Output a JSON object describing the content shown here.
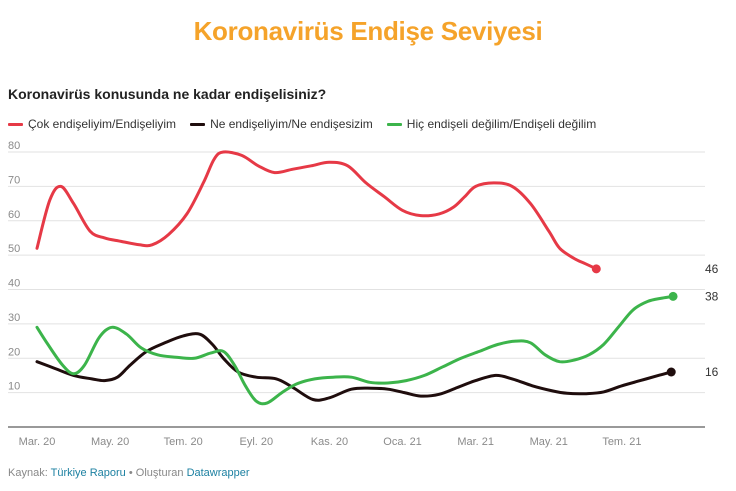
{
  "header": {
    "title": "Koronavirüs Endişe Seviyesi",
    "subtitle": "Koronavirüs konusunda ne kadar endişelisiniz?"
  },
  "footer": {
    "source_label": "Kaynak:",
    "source_name": "Türkiye Raporu",
    "separator": "•",
    "created_label": "Oluşturan",
    "tool_name": "Datawrapper"
  },
  "chart_data": {
    "type": "line",
    "title": "Koronavirüs Endişe Seviyesi",
    "subtitle": "Koronavirüs konusunda ne kadar endişelisiniz?",
    "xlabel": "",
    "ylabel": "",
    "x_ticks": [
      "Mar. 20",
      "May. 20",
      "Tem. 20",
      "Eyl. 20",
      "Kas. 20",
      "Oca. 21",
      "Mar. 21",
      "May. 21",
      "Tem. 21"
    ],
    "y_ticks": [
      10,
      20,
      30,
      40,
      50,
      60,
      70,
      80
    ],
    "ylim": [
      0,
      80
    ],
    "grid": true,
    "legend_position": "top-left",
    "series": [
      {
        "name": "Çok endişeliyim/Endişeliyim",
        "color": "#e63946",
        "end_label": "46",
        "points": [
          [
            0,
            52
          ],
          [
            0.35,
            66
          ],
          [
            0.65,
            70
          ],
          [
            1,
            65
          ],
          [
            1.45,
            57
          ],
          [
            1.85,
            55
          ],
          [
            2.3,
            54
          ],
          [
            2.8,
            53
          ],
          [
            3.15,
            53
          ],
          [
            3.6,
            56
          ],
          [
            4.1,
            62
          ],
          [
            4.55,
            71
          ],
          [
            4.85,
            78
          ],
          [
            5.1,
            80
          ],
          [
            5.6,
            79
          ],
          [
            6.05,
            76
          ],
          [
            6.5,
            74
          ],
          [
            7,
            75
          ],
          [
            7.5,
            76
          ],
          [
            8,
            77
          ],
          [
            8.5,
            76
          ],
          [
            9,
            71
          ],
          [
            9.5,
            67
          ],
          [
            10,
            63
          ],
          [
            10.5,
            61.5
          ],
          [
            11,
            62
          ],
          [
            11.4,
            64
          ],
          [
            11.7,
            67
          ],
          [
            12,
            70
          ],
          [
            12.5,
            71
          ],
          [
            13,
            70
          ],
          [
            13.5,
            65
          ],
          [
            14,
            57
          ],
          [
            14.3,
            52
          ],
          [
            14.7,
            49
          ],
          [
            15,
            47.5
          ],
          [
            15.3,
            46
          ]
        ]
      },
      {
        "name": "Ne endişeliyim/Ne endişesizim",
        "color": "#1f0d0d",
        "end_label": "16",
        "points": [
          [
            0,
            19
          ],
          [
            0.5,
            17
          ],
          [
            1,
            15
          ],
          [
            1.5,
            14
          ],
          [
            1.85,
            13.5
          ],
          [
            2.2,
            14.5
          ],
          [
            2.55,
            18
          ],
          [
            3,
            22
          ],
          [
            3.5,
            24.5
          ],
          [
            4,
            26.5
          ],
          [
            4.45,
            27
          ],
          [
            4.8,
            24
          ],
          [
            5.1,
            20
          ],
          [
            5.5,
            16
          ],
          [
            6,
            14.5
          ],
          [
            6.55,
            14
          ],
          [
            7,
            11.5
          ],
          [
            7.55,
            8
          ],
          [
            8,
            8.5
          ],
          [
            8.6,
            11
          ],
          [
            9.15,
            11.3
          ],
          [
            9.6,
            11
          ],
          [
            10.05,
            10
          ],
          [
            10.5,
            9
          ],
          [
            11,
            9.5
          ],
          [
            11.5,
            11.5
          ],
          [
            12,
            13.5
          ],
          [
            12.55,
            15
          ],
          [
            13,
            14
          ],
          [
            13.55,
            12
          ],
          [
            14.1,
            10.5
          ],
          [
            14.5,
            9.8
          ],
          [
            15,
            9.7
          ],
          [
            15.5,
            10.2
          ],
          [
            16,
            12
          ],
          [
            16.5,
            13.5
          ],
          [
            17,
            15
          ],
          [
            17.35,
            16
          ]
        ]
      },
      {
        "name": "Hiç endişeli değilim/Endişeli değilim",
        "color": "#3cb44b",
        "end_label": "38",
        "points": [
          [
            0,
            29
          ],
          [
            0.3,
            24
          ],
          [
            0.7,
            18
          ],
          [
            1,
            15.5
          ],
          [
            1.3,
            18
          ],
          [
            1.7,
            26
          ],
          [
            2.05,
            29
          ],
          [
            2.45,
            27
          ],
          [
            2.85,
            23
          ],
          [
            3.3,
            21
          ],
          [
            3.8,
            20.3
          ],
          [
            4.3,
            20
          ],
          [
            4.75,
            21.5
          ],
          [
            5.1,
            22
          ],
          [
            5.4,
            18
          ],
          [
            5.7,
            12
          ],
          [
            6,
            7.5
          ],
          [
            6.3,
            7
          ],
          [
            6.7,
            10
          ],
          [
            7.1,
            12.5
          ],
          [
            7.6,
            14
          ],
          [
            8.1,
            14.5
          ],
          [
            8.6,
            14.5
          ],
          [
            9.1,
            13
          ],
          [
            9.6,
            12.8
          ],
          [
            10.1,
            13.5
          ],
          [
            10.6,
            15
          ],
          [
            11.1,
            17.5
          ],
          [
            11.6,
            20
          ],
          [
            12.1,
            22
          ],
          [
            12.6,
            24
          ],
          [
            13.1,
            25
          ],
          [
            13.5,
            24.5
          ],
          [
            13.9,
            21
          ],
          [
            14.3,
            19
          ],
          [
            14.7,
            19.5
          ],
          [
            15.1,
            21
          ],
          [
            15.5,
            24
          ],
          [
            15.9,
            29
          ],
          [
            16.3,
            34
          ],
          [
            16.7,
            36.5
          ],
          [
            17.1,
            37.5
          ],
          [
            17.4,
            38
          ]
        ]
      }
    ]
  }
}
